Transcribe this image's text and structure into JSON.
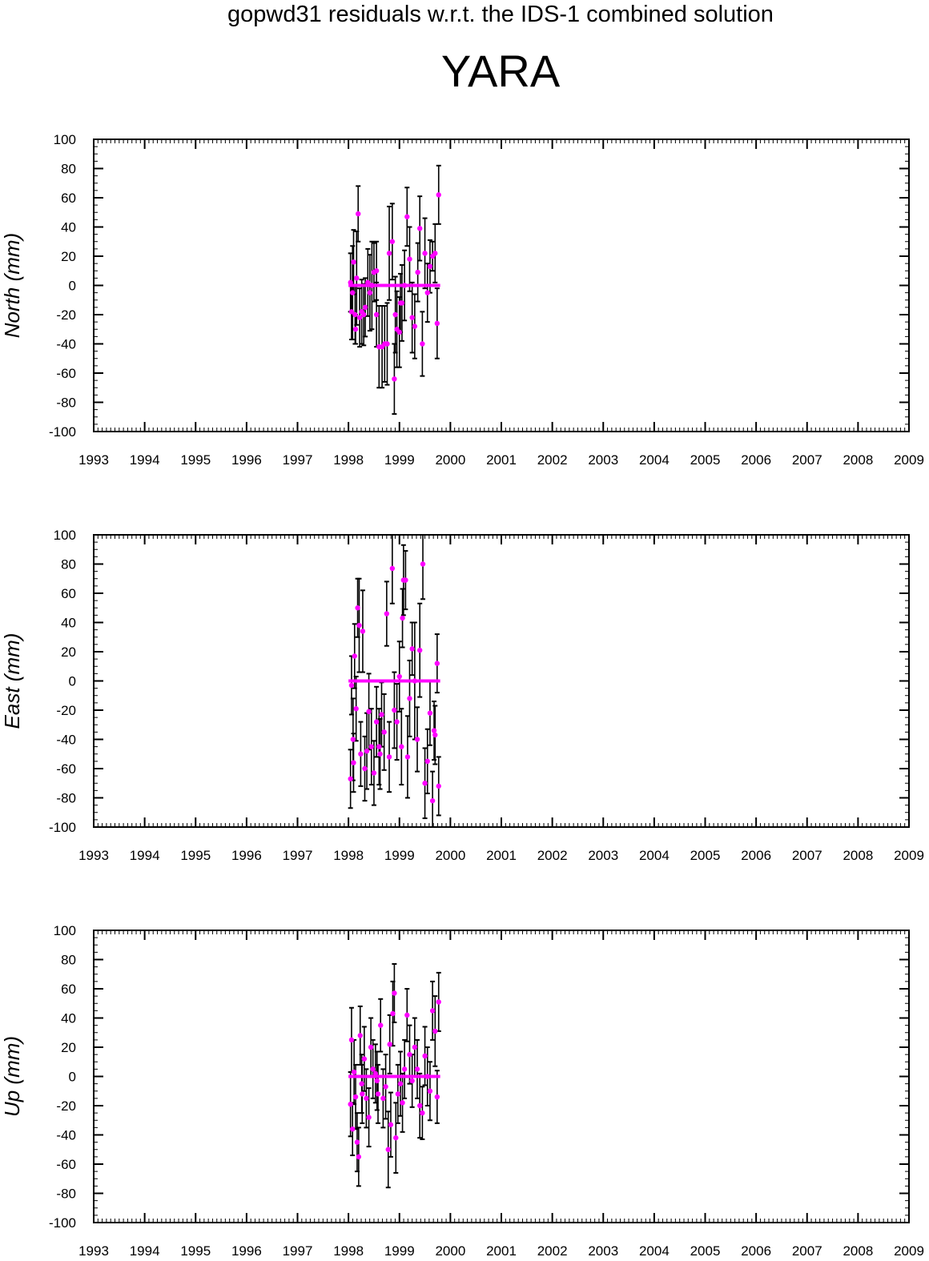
{
  "title": "gopwd31 residuals w.r.t. the IDS-1 combined solution",
  "station": "YARA",
  "colors": {
    "points": "#ff00ff",
    "errorbars": "#000000",
    "axes": "#000000"
  },
  "chart_data": [
    {
      "type": "scatter",
      "ylabel": "North (mm)",
      "xlim": [
        1993,
        2009
      ],
      "ylim": [
        -100,
        100
      ],
      "xticks": [
        "1993",
        "1994",
        "1995",
        "1996",
        "1997",
        "1998",
        "1999",
        "2000",
        "2001",
        "2002",
        "2003",
        "2004",
        "2005",
        "2006",
        "2007",
        "2008",
        "2009"
      ],
      "yticks": [
        "100",
        "80",
        "60",
        "40",
        "20",
        "0",
        "-20",
        "-40",
        "-60",
        "-80",
        "-100"
      ],
      "grid": false,
      "zero_line": {
        "x_range": [
          1998.0,
          1999.8
        ],
        "y": 0
      },
      "points": [
        {
          "x": 1998.04,
          "y": 2,
          "err": 20
        },
        {
          "x": 1998.06,
          "y": -18,
          "err": 19
        },
        {
          "x": 1998.08,
          "y": -5,
          "err": 32
        },
        {
          "x": 1998.1,
          "y": 16,
          "err": 22
        },
        {
          "x": 1998.13,
          "y": -20,
          "err": 20
        },
        {
          "x": 1998.16,
          "y": 5,
          "err": 32
        },
        {
          "x": 1998.19,
          "y": 49,
          "err": 19
        },
        {
          "x": 1998.22,
          "y": -22,
          "err": 20
        },
        {
          "x": 1998.26,
          "y": -18,
          "err": 22
        },
        {
          "x": 1998.3,
          "y": -20,
          "err": 21
        },
        {
          "x": 1998.33,
          "y": -15,
          "err": 20
        },
        {
          "x": 1998.38,
          "y": 2,
          "err": 23
        },
        {
          "x": 1998.42,
          "y": -5,
          "err": 26
        },
        {
          "x": 1998.46,
          "y": 0,
          "err": 30
        },
        {
          "x": 1998.5,
          "y": 9,
          "err": 20
        },
        {
          "x": 1998.55,
          "y": 10,
          "err": 20
        },
        {
          "x": 1998.6,
          "y": -42,
          "err": 28
        },
        {
          "x": 1998.66,
          "y": -42,
          "err": 28
        },
        {
          "x": 1998.71,
          "y": -40,
          "err": 26
        },
        {
          "x": 1998.76,
          "y": -40,
          "err": 28
        },
        {
          "x": 1998.8,
          "y": 22,
          "err": 32
        },
        {
          "x": 1998.86,
          "y": 30,
          "err": 26
        },
        {
          "x": 1998.9,
          "y": -64,
          "err": 24
        },
        {
          "x": 1998.95,
          "y": -30,
          "err": 26
        },
        {
          "x": 1999.0,
          "y": -32,
          "err": 24
        },
        {
          "x": 1999.05,
          "y": -12,
          "err": 26
        },
        {
          "x": 1999.1,
          "y": 0,
          "err": 24
        },
        {
          "x": 1999.15,
          "y": 47,
          "err": 20
        },
        {
          "x": 1999.2,
          "y": 18,
          "err": 22
        },
        {
          "x": 1999.25,
          "y": -22,
          "err": 24
        },
        {
          "x": 1999.3,
          "y": -28,
          "err": 22
        },
        {
          "x": 1999.36,
          "y": 9,
          "err": 20
        },
        {
          "x": 1999.4,
          "y": 39,
          "err": 22
        },
        {
          "x": 1999.45,
          "y": -40,
          "err": 22
        },
        {
          "x": 1999.5,
          "y": 22,
          "err": 24
        },
        {
          "x": 1999.55,
          "y": -5,
          "err": 20
        },
        {
          "x": 1999.6,
          "y": 13,
          "err": 18
        },
        {
          "x": 1999.65,
          "y": 20,
          "err": 10
        },
        {
          "x": 1999.7,
          "y": 22,
          "err": 20
        },
        {
          "x": 1999.74,
          "y": -26,
          "err": 24
        },
        {
          "x": 1999.77,
          "y": 62,
          "err": 20
        },
        {
          "x": 1998.55,
          "y": -20,
          "err": 22
        },
        {
          "x": 1998.14,
          "y": -30,
          "err": 10
        },
        {
          "x": 1999.02,
          "y": -12,
          "err": 20
        },
        {
          "x": 1998.92,
          "y": -20,
          "err": 26
        }
      ]
    },
    {
      "type": "scatter",
      "ylabel": "East (mm)",
      "xlim": [
        1993,
        2009
      ],
      "ylim": [
        -100,
        100
      ],
      "xticks": [
        "1993",
        "1994",
        "1995",
        "1996",
        "1997",
        "1998",
        "1999",
        "2000",
        "2001",
        "2002",
        "2003",
        "2004",
        "2005",
        "2006",
        "2007",
        "2008",
        "2009"
      ],
      "yticks": [
        "100",
        "80",
        "60",
        "40",
        "20",
        "0",
        "-20",
        "-40",
        "-60",
        "-80",
        "-100"
      ],
      "grid": false,
      "zero_line": {
        "x_range": [
          1998.0,
          1999.8
        ],
        "y": 0
      },
      "points": [
        {
          "x": 1998.04,
          "y": -67,
          "err": 20
        },
        {
          "x": 1998.06,
          "y": -3,
          "err": 20
        },
        {
          "x": 1998.09,
          "y": -40,
          "err": 28
        },
        {
          "x": 1998.12,
          "y": 17,
          "err": 22
        },
        {
          "x": 1998.15,
          "y": -19,
          "err": 22
        },
        {
          "x": 1998.18,
          "y": 50,
          "err": 20
        },
        {
          "x": 1998.21,
          "y": 38,
          "err": 32
        },
        {
          "x": 1998.24,
          "y": -50,
          "err": 22
        },
        {
          "x": 1998.28,
          "y": 34,
          "err": 28
        },
        {
          "x": 1998.32,
          "y": -60,
          "err": 22
        },
        {
          "x": 1998.36,
          "y": -48,
          "err": 26
        },
        {
          "x": 1998.4,
          "y": -21,
          "err": 26
        },
        {
          "x": 1998.45,
          "y": -45,
          "err": 26
        },
        {
          "x": 1998.5,
          "y": -63,
          "err": 22
        },
        {
          "x": 1998.55,
          "y": -28,
          "err": 24
        },
        {
          "x": 1998.6,
          "y": -45,
          "err": 26
        },
        {
          "x": 1998.65,
          "y": -23,
          "err": 22
        },
        {
          "x": 1998.7,
          "y": -35,
          "err": 26
        },
        {
          "x": 1998.75,
          "y": 46,
          "err": 22
        },
        {
          "x": 1998.8,
          "y": -52,
          "err": 24
        },
        {
          "x": 1998.86,
          "y": 77,
          "err": 24
        },
        {
          "x": 1998.9,
          "y": -20,
          "err": 26
        },
        {
          "x": 1998.95,
          "y": -28,
          "err": 26
        },
        {
          "x": 1999.0,
          "y": 3,
          "err": 24
        },
        {
          "x": 1999.04,
          "y": -45,
          "err": 26
        },
        {
          "x": 1999.08,
          "y": 69,
          "err": 24
        },
        {
          "x": 1999.12,
          "y": 69,
          "err": 20
        },
        {
          "x": 1999.16,
          "y": -52,
          "err": 28
        },
        {
          "x": 1999.2,
          "y": -12,
          "err": 26
        },
        {
          "x": 1999.25,
          "y": 22,
          "err": 18
        },
        {
          "x": 1999.3,
          "y": 0,
          "err": 40
        },
        {
          "x": 1999.35,
          "y": -40,
          "err": 22
        },
        {
          "x": 1999.4,
          "y": 21,
          "err": 32
        },
        {
          "x": 1999.46,
          "y": 80,
          "err": 24
        },
        {
          "x": 1999.5,
          "y": -70,
          "err": 24
        },
        {
          "x": 1999.55,
          "y": -55,
          "err": 22
        },
        {
          "x": 1999.6,
          "y": -22,
          "err": 22
        },
        {
          "x": 1999.65,
          "y": -82,
          "err": 20
        },
        {
          "x": 1999.7,
          "y": -37,
          "err": 20
        },
        {
          "x": 1999.74,
          "y": 12,
          "err": 20
        },
        {
          "x": 1999.77,
          "y": -72,
          "err": 20
        },
        {
          "x": 1999.06,
          "y": 43,
          "err": 20
        },
        {
          "x": 1998.1,
          "y": -56,
          "err": 20
        },
        {
          "x": 1998.62,
          "y": -50,
          "err": 24
        },
        {
          "x": 1999.68,
          "y": -34,
          "err": 20
        }
      ]
    },
    {
      "type": "scatter",
      "ylabel": "Up (mm)",
      "xlim": [
        1993,
        2009
      ],
      "ylim": [
        -100,
        100
      ],
      "xticks": [
        "1993",
        "1994",
        "1995",
        "1996",
        "1997",
        "1998",
        "1999",
        "2000",
        "2001",
        "2002",
        "2003",
        "2004",
        "2005",
        "2006",
        "2007",
        "2008",
        "2009"
      ],
      "yticks": [
        "100",
        "80",
        "60",
        "40",
        "20",
        "0",
        "-20",
        "-40",
        "-60",
        "-80",
        "-100"
      ],
      "grid": false,
      "zero_line": {
        "x_range": [
          1998.0,
          1999.8
        ],
        "y": 0
      },
      "points": [
        {
          "x": 1998.04,
          "y": -19,
          "err": 22
        },
        {
          "x": 1998.06,
          "y": 25,
          "err": 22
        },
        {
          "x": 1998.08,
          "y": -36,
          "err": 18
        },
        {
          "x": 1998.11,
          "y": 3,
          "err": 22
        },
        {
          "x": 1998.14,
          "y": -14,
          "err": 22
        },
        {
          "x": 1998.17,
          "y": -45,
          "err": 20
        },
        {
          "x": 1998.2,
          "y": -55,
          "err": 20
        },
        {
          "x": 1998.23,
          "y": 28,
          "err": 20
        },
        {
          "x": 1998.27,
          "y": -12,
          "err": 20
        },
        {
          "x": 1998.31,
          "y": 12,
          "err": 22
        },
        {
          "x": 1998.35,
          "y": -15,
          "err": 20
        },
        {
          "x": 1998.4,
          "y": -28,
          "err": 20
        },
        {
          "x": 1998.44,
          "y": 20,
          "err": 20
        },
        {
          "x": 1998.48,
          "y": 5,
          "err": 20
        },
        {
          "x": 1998.53,
          "y": 2,
          "err": 20
        },
        {
          "x": 1998.58,
          "y": -12,
          "err": 20
        },
        {
          "x": 1998.63,
          "y": 35,
          "err": 18
        },
        {
          "x": 1998.68,
          "y": -15,
          "err": 20
        },
        {
          "x": 1998.73,
          "y": -7,
          "err": 22
        },
        {
          "x": 1998.78,
          "y": -50,
          "err": 26
        },
        {
          "x": 1998.83,
          "y": -33,
          "err": 22
        },
        {
          "x": 1998.87,
          "y": 43,
          "err": 22
        },
        {
          "x": 1998.9,
          "y": 57,
          "err": 20
        },
        {
          "x": 1998.93,
          "y": -42,
          "err": 24
        },
        {
          "x": 1998.97,
          "y": -12,
          "err": 20
        },
        {
          "x": 1999.02,
          "y": -5,
          "err": 22
        },
        {
          "x": 1999.06,
          "y": -18,
          "err": 20
        },
        {
          "x": 1999.1,
          "y": 5,
          "err": 20
        },
        {
          "x": 1999.15,
          "y": 42,
          "err": 18
        },
        {
          "x": 1999.2,
          "y": 15,
          "err": 20
        },
        {
          "x": 1999.25,
          "y": -3,
          "err": 18
        },
        {
          "x": 1999.3,
          "y": 20,
          "err": 20
        },
        {
          "x": 1999.35,
          "y": 5,
          "err": 20
        },
        {
          "x": 1999.4,
          "y": -20,
          "err": 22
        },
        {
          "x": 1999.45,
          "y": -25,
          "err": 18
        },
        {
          "x": 1999.5,
          "y": 14,
          "err": 20
        },
        {
          "x": 1999.55,
          "y": 0,
          "err": 20
        },
        {
          "x": 1999.6,
          "y": -10,
          "err": 20
        },
        {
          "x": 1999.65,
          "y": 45,
          "err": 20
        },
        {
          "x": 1999.7,
          "y": 31,
          "err": 24
        },
        {
          "x": 1999.74,
          "y": -14,
          "err": 18
        },
        {
          "x": 1999.77,
          "y": 51,
          "err": 20
        },
        {
          "x": 1998.26,
          "y": -5,
          "err": 20
        },
        {
          "x": 1998.56,
          "y": -3,
          "err": 20
        },
        {
          "x": 1998.81,
          "y": 22,
          "err": 20
        }
      ]
    }
  ]
}
